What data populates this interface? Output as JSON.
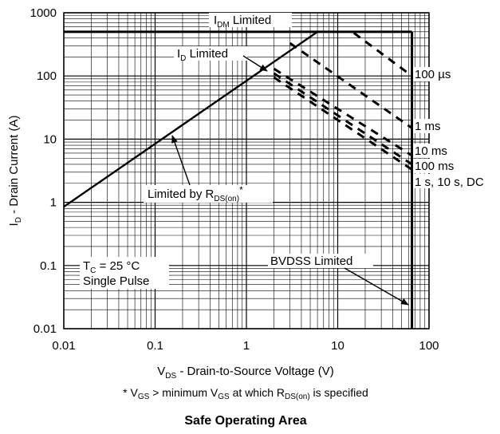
{
  "chart_data": {
    "type": "line",
    "title": "Safe Operating Area",
    "x_scale": "log",
    "y_scale": "log",
    "xlim": [
      0.01,
      100
    ],
    "ylim": [
      0.01,
      1000
    ],
    "x_ticks": [
      "0.01",
      "0.1",
      "1",
      "10",
      "100"
    ],
    "y_ticks": [
      "1000",
      "100",
      "10",
      "1",
      "0.1",
      "0.01"
    ],
    "xlabel": {
      "main": "V",
      "sub": "DS",
      "rest": " - Drain-to-Source Voltage (V)"
    },
    "ylabel": {
      "main": "I",
      "sub": "D",
      "rest": " - Drain Current (A)"
    },
    "footnote": {
      "p1": "* V",
      "s1": "GS",
      "p2": " > minimum V",
      "s2": "GS",
      "p3": " at which R",
      "s3": "DS(on)",
      "p4": " is specified"
    },
    "grid": true,
    "limits": {
      "idm_current": 500,
      "bvdss_voltage": 65,
      "rds_line": {
        "x": [
          0.01,
          6
        ],
        "y": [
          0.85,
          500
        ]
      }
    },
    "series": [
      {
        "name": "100 µs",
        "x": [
          15,
          65
        ],
        "y": [
          480,
          100
        ]
      },
      {
        "name": "1 ms",
        "x": [
          3,
          65
        ],
        "y": [
          330,
          15
        ]
      },
      {
        "name": "10 ms",
        "x": [
          2,
          65
        ],
        "y": [
          130,
          5.5
        ]
      },
      {
        "name": "100 ms",
        "x": [
          2,
          65
        ],
        "y": [
          110,
          4
        ]
      },
      {
        "name": "1 s, 10 s, DC",
        "x": [
          2,
          65
        ],
        "y": [
          95,
          3.3
        ]
      }
    ],
    "annotations": {
      "idm": {
        "main": "I",
        "sub": "DM",
        "rest": " Limited"
      },
      "id": {
        "main": "I",
        "sub": "D",
        "rest": " Limited"
      },
      "rds": {
        "main": "Limited by R",
        "sub": "DS(on)",
        "rest": "*"
      },
      "bvdss": "BVDSS Limited",
      "tc": {
        "main": "T",
        "sub": "C",
        "rest": " = 25 °C"
      },
      "pulse": "Single Pulse"
    },
    "series_labels": [
      "100 µs",
      "1 ms",
      "10 ms",
      "100 ms",
      "1 s, 10 s, DC"
    ]
  }
}
